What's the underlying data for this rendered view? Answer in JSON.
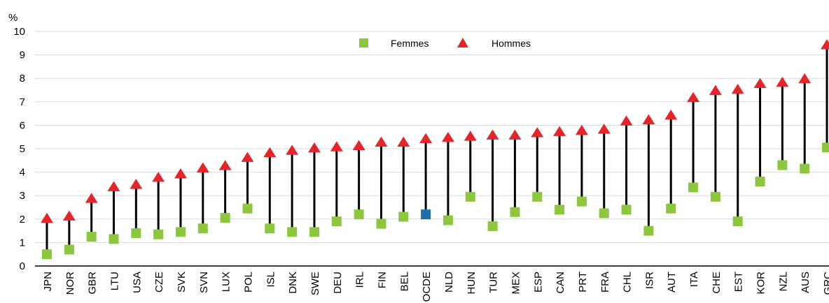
{
  "chart_data": {
    "type": "dot-range",
    "unit_label": "%",
    "ylim": [
      0,
      10
    ],
    "yticks": [
      0,
      1,
      2,
      3,
      4,
      5,
      6,
      7,
      8,
      9,
      10
    ],
    "grid": true,
    "legend_position": "top-center",
    "categories": [
      "JPN",
      "NOR",
      "GBR",
      "LTU",
      "USA",
      "CZE",
      "SVK",
      "SVN",
      "LUX",
      "POL",
      "ISL",
      "DNK",
      "SWE",
      "DEU",
      "IRL",
      "FIN",
      "BEL",
      "OCDE",
      "NLD",
      "HUN",
      "TUR",
      "MEX",
      "ESP",
      "CAN",
      "PRT",
      "FRA",
      "CHL",
      "ISR",
      "AUT",
      "ITA",
      "CHE",
      "EST",
      "KOR",
      "NZL",
      "AUS",
      "GRC"
    ],
    "highlight_category": "OCDE",
    "series": [
      {
        "name": "Femmes",
        "marker": "square",
        "color": "#8dc63f",
        "highlight_color": "#1f6fad",
        "values": [
          0.5,
          0.7,
          1.25,
          1.15,
          1.4,
          1.35,
          1.45,
          1.6,
          2.05,
          2.45,
          1.6,
          1.45,
          1.45,
          1.9,
          2.2,
          1.8,
          2.1,
          2.2,
          1.95,
          2.95,
          1.7,
          2.3,
          2.95,
          2.4,
          2.75,
          2.25,
          2.4,
          1.5,
          2.45,
          3.35,
          2.95,
          1.9,
          3.6,
          4.3,
          4.15,
          5.05
        ]
      },
      {
        "name": "Hommes",
        "marker": "triangle",
        "color": "#e3262b",
        "values": [
          2.0,
          2.1,
          2.85,
          3.35,
          3.45,
          3.75,
          3.9,
          4.15,
          4.25,
          4.6,
          4.8,
          4.9,
          5.0,
          5.05,
          5.1,
          5.25,
          5.25,
          5.4,
          5.45,
          5.5,
          5.55,
          5.55,
          5.65,
          5.7,
          5.75,
          5.8,
          6.15,
          6.2,
          6.4,
          7.15,
          7.45,
          7.5,
          7.75,
          7.8,
          7.95,
          9.4
        ]
      }
    ]
  }
}
